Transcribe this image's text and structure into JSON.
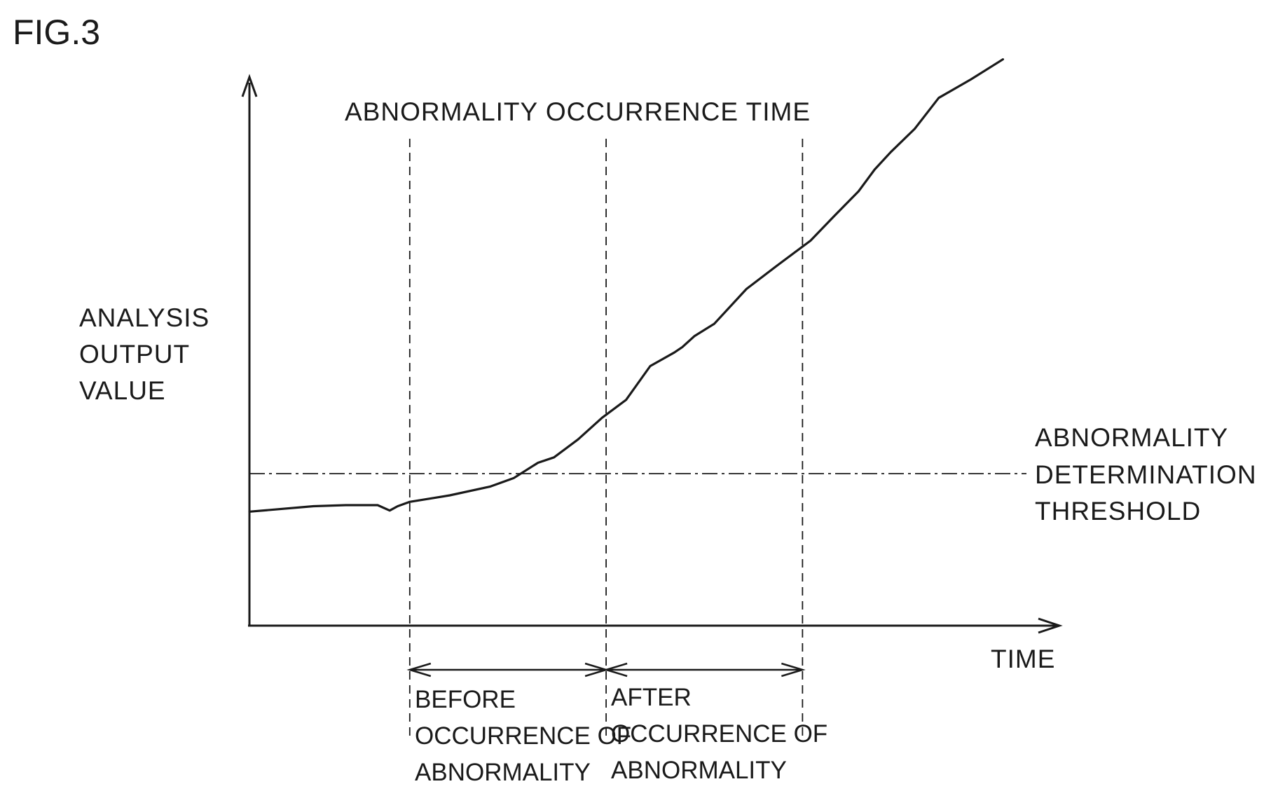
{
  "figure_label": "FIG.3",
  "chart_data": {
    "type": "line",
    "title": "",
    "ylabel": [
      "ANALYSIS",
      "OUTPUT",
      "VALUE"
    ],
    "xlabel": "TIME",
    "xlim": [
      0,
      100
    ],
    "ylim": [
      0,
      100
    ],
    "grid": false,
    "series": [
      {
        "x": [
          0,
          8,
          12,
          16,
          17.5,
          18.5,
          20,
          25,
          30,
          33,
          36,
          38,
          41,
          44,
          47,
          50,
          53,
          54,
          55.5,
          58,
          62,
          66,
          70,
          73,
          76,
          78,
          80,
          83,
          86,
          90,
          94
        ],
        "y": [
          21,
          22,
          22.2,
          22.2,
          21.2,
          22,
          22.8,
          24,
          25.6,
          27.2,
          30,
          31,
          34.3,
          38.3,
          41.6,
          47.8,
          50.3,
          51.3,
          53.3,
          55.6,
          62,
          66.5,
          70.9,
          75.5,
          80,
          84,
          87.2,
          91.5,
          97.2,
          100.6,
          104.3
        ]
      }
    ],
    "threshold": {
      "y": 28,
      "label": [
        "ABNORMALITY",
        "DETERMINATION",
        "THRESHOLD"
      ]
    },
    "markers": [
      {
        "x": 20
      },
      {
        "x": 44.5,
        "label": "ABNORMALITY OCCURRENCE TIME"
      },
      {
        "x": 69
      }
    ],
    "intervals": [
      {
        "from": 20,
        "to": 44.5,
        "label": [
          "BEFORE",
          "OCCURRENCE OF",
          "ABNORMALITY"
        ]
      },
      {
        "from": 44.5,
        "to": 69,
        "label": [
          "AFTER",
          "OCCURRENCE OF",
          "ABNORMALITY"
        ]
      }
    ]
  }
}
